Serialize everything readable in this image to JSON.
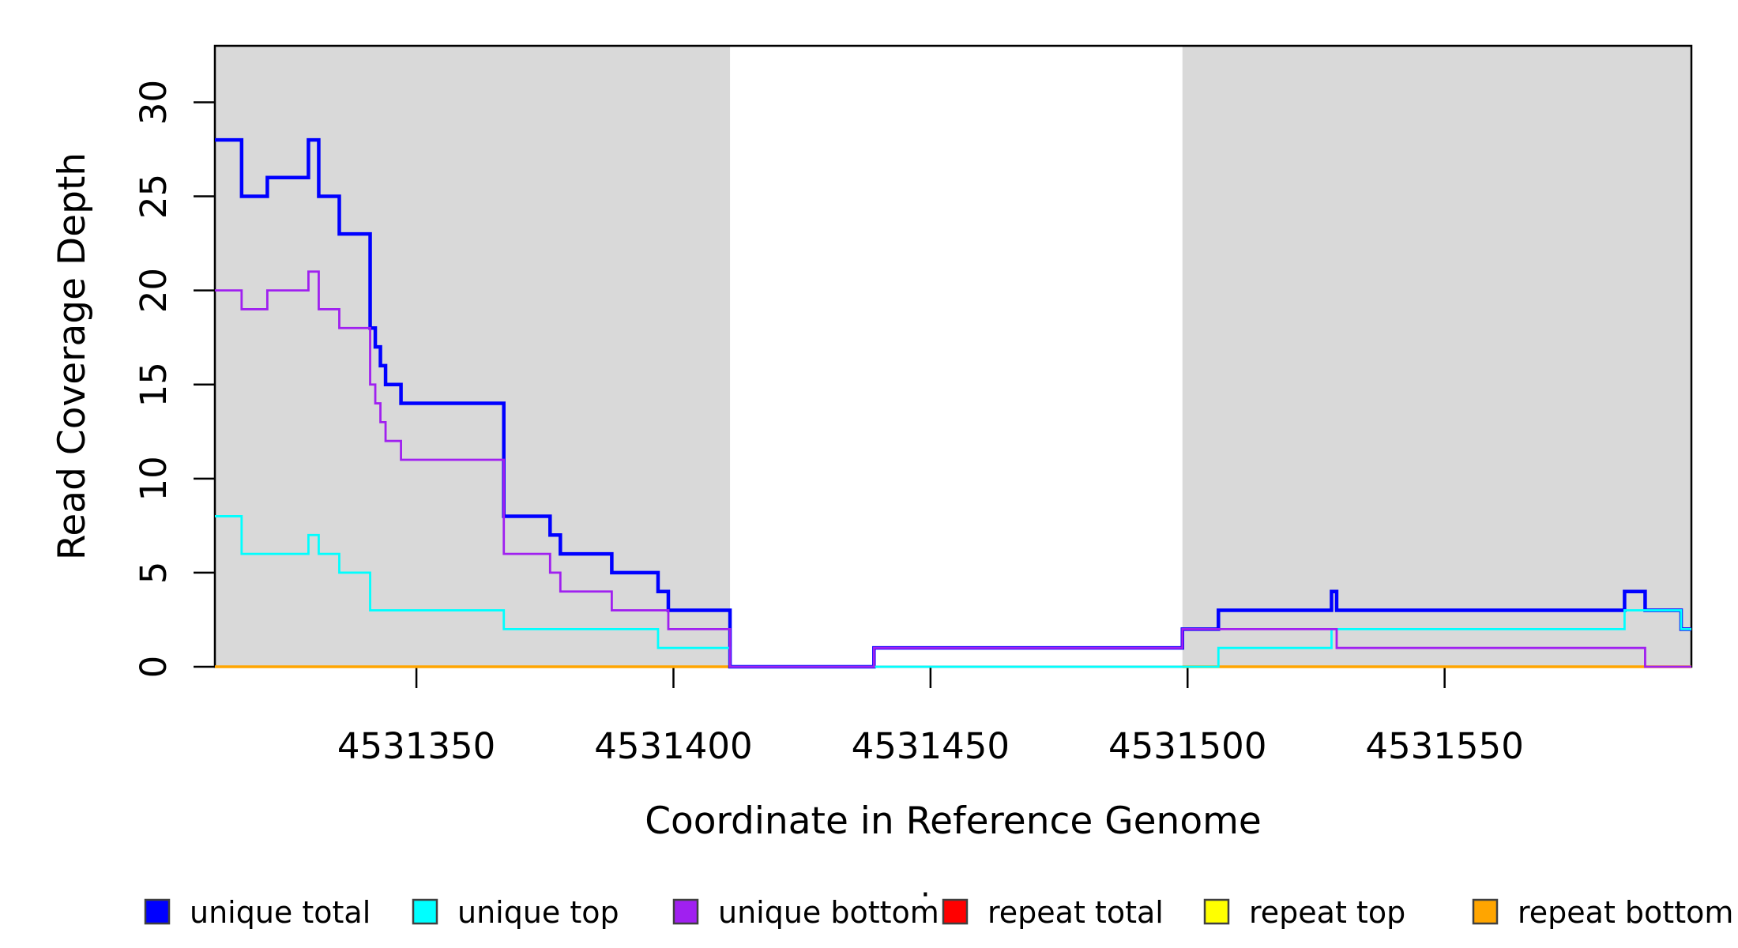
{
  "figure": {
    "background": "#ffffff",
    "frame_color": "#000000",
    "text_color": "#000000",
    "shaded_region_color": "#d9d9d9"
  },
  "chart_data": {
    "type": "line",
    "line_style": "step-post",
    "title": "",
    "xlabel": "Coordinate in Reference Genome",
    "ylabel": "Read Coverage Depth",
    "xlim": [
      4531310.8,
      4531598
    ],
    "ylim": [
      0,
      33
    ],
    "grid": false,
    "legend_position": "bottom",
    "x_ticks": [
      {
        "value": 4531350,
        "label": "4531350"
      },
      {
        "value": 4531400,
        "label": "4531400"
      },
      {
        "value": 4531450,
        "label": "4531450"
      },
      {
        "value": 4531500,
        "label": "4531500"
      },
      {
        "value": 4531550,
        "label": "4531550"
      }
    ],
    "y_ticks": [
      {
        "value": 0,
        "label": "0"
      },
      {
        "value": 5,
        "label": "5"
      },
      {
        "value": 10,
        "label": "10"
      },
      {
        "value": 15,
        "label": "15"
      },
      {
        "value": 20,
        "label": "20"
      },
      {
        "value": 25,
        "label": "25"
      },
      {
        "value": 30,
        "label": "30"
      }
    ],
    "shaded_regions": [
      {
        "from": 4531310.8,
        "to": 4531411,
        "color": "#d9d9d9"
      },
      {
        "from": 4531499,
        "to": 4531598,
        "color": "#d9d9d9"
      }
    ],
    "series": [
      {
        "name": "unique-total",
        "label": "unique total",
        "color": "#0000ff",
        "line_width": 4.5,
        "segments": [
          {
            "points": [
              [
                4531310.8,
                28
              ],
              [
                4531316,
                25
              ],
              [
                4531321,
                26
              ],
              [
                4531329,
                28
              ],
              [
                4531331,
                25
              ],
              [
                4531335,
                23
              ],
              [
                4531341,
                18
              ],
              [
                4531342,
                17
              ],
              [
                4531343,
                16
              ],
              [
                4531344,
                15
              ],
              [
                4531347,
                14
              ],
              [
                4531367,
                8
              ],
              [
                4531376,
                7
              ],
              [
                4531378,
                6
              ],
              [
                4531388,
                5
              ],
              [
                4531397,
                4
              ],
              [
                4531399,
                3
              ],
              [
                4531411,
                0
              ],
              [
                4531439,
                1
              ],
              [
                4531499,
                2
              ],
              [
                4531506,
                3
              ],
              [
                4531528,
                4
              ],
              [
                4531529,
                3
              ],
              [
                4531585,
                4
              ],
              [
                4531589,
                3
              ],
              [
                4531596,
                2
              ]
            ],
            "end": 4531598
          }
        ]
      },
      {
        "name": "unique-top",
        "label": "unique top",
        "color": "#00ffff",
        "line_width": 2.8,
        "segments": [
          {
            "points": [
              [
                4531310.8,
                8
              ],
              [
                4531316,
                6
              ],
              [
                4531329,
                7
              ],
              [
                4531331,
                6
              ],
              [
                4531335,
                5
              ],
              [
                4531341,
                3
              ],
              [
                4531367,
                2
              ],
              [
                4531397,
                1
              ],
              [
                4531411,
                0
              ],
              [
                4531506,
                1
              ],
              [
                4531528,
                2
              ],
              [
                4531585,
                3
              ],
              [
                4531596,
                2
              ]
            ],
            "end": 4531598
          }
        ]
      },
      {
        "name": "unique-bottom",
        "label": "unique bottom",
        "color": "#a020f0",
        "line_width": 2.8,
        "segments": [
          {
            "points": [
              [
                4531310.8,
                20
              ],
              [
                4531316,
                19
              ],
              [
                4531321,
                20
              ],
              [
                4531329,
                21
              ],
              [
                4531331,
                19
              ],
              [
                4531335,
                18
              ],
              [
                4531341,
                15
              ],
              [
                4531342,
                14
              ],
              [
                4531343,
                13
              ],
              [
                4531344,
                12
              ],
              [
                4531347,
                11
              ],
              [
                4531367,
                6
              ],
              [
                4531376,
                5
              ],
              [
                4531378,
                4
              ],
              [
                4531388,
                3
              ],
              [
                4531399,
                2
              ],
              [
                4531411,
                0
              ],
              [
                4531439,
                1
              ],
              [
                4531499,
                2
              ],
              [
                4531529,
                1
              ],
              [
                4531589,
                0
              ]
            ],
            "end": 4531598
          }
        ]
      },
      {
        "name": "repeat-total",
        "label": "repeat total",
        "color": "#ff0000",
        "line_width": 2.8,
        "segments": [
          {
            "points": [
              [
                4531310.8,
                0
              ]
            ],
            "end": 4531411
          },
          {
            "points": [
              [
                4531499,
                0
              ]
            ],
            "end": 4531598
          }
        ]
      },
      {
        "name": "repeat-top",
        "label": "repeat top",
        "color": "#ffff00",
        "line_width": 2.8,
        "segments": [
          {
            "points": [
              [
                4531310.8,
                0
              ]
            ],
            "end": 4531411
          },
          {
            "points": [
              [
                4531499,
                0
              ]
            ],
            "end": 4531598
          }
        ]
      },
      {
        "name": "repeat-bottom",
        "label": "repeat bottom",
        "color": "#ffa500",
        "line_width": 3.4,
        "segments": [
          {
            "points": [
              [
                4531310.8,
                0
              ]
            ],
            "end": 4531411
          },
          {
            "points": [
              [
                4531499,
                0
              ]
            ],
            "end": 4531598
          }
        ]
      }
    ]
  },
  "legend": {
    "items": [
      {
        "label": "unique total",
        "color": "#0000ff"
      },
      {
        "label": "unique top",
        "color": "#00ffff"
      },
      {
        "label": "unique bottom",
        "color": "#a020f0"
      },
      {
        "label": "repeat total",
        "color": "#ff0000"
      },
      {
        "label": "repeat top",
        "color": "#ffff00"
      },
      {
        "label": "repeat bottom",
        "color": "#ffa500"
      }
    ],
    "stray_mark": "·"
  }
}
